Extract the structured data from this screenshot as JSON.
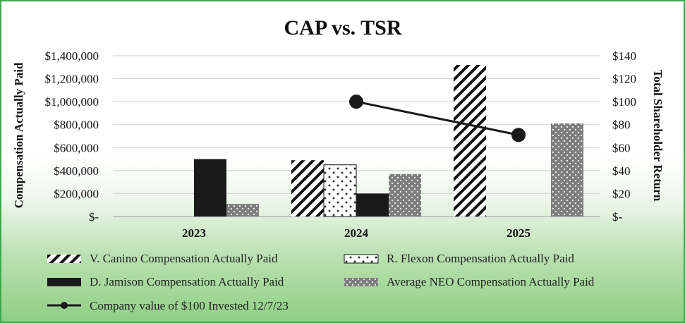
{
  "chart_data": {
    "type": "bar",
    "title": "CAP vs. TSR",
    "categories": [
      "2023",
      "2024",
      "2025"
    ],
    "ylabel": "Compensation Actually Paid",
    "y2label": "Total Shareholder Return",
    "ylim": [
      0,
      1400000
    ],
    "y2lim": [
      0,
      140
    ],
    "yticks": [
      "$-",
      "$200,000",
      "$400,000",
      "$600,000",
      "$800,000",
      "$1,000,000",
      "$1,200,000",
      "$1,400,000"
    ],
    "y2ticks": [
      "$-",
      "$20",
      "$40",
      "$60",
      "$80",
      "$100",
      "$120",
      "$140"
    ],
    "grid": true,
    "series": [
      {
        "name": "V. Canino Compensation Actually Paid",
        "kind": "bar",
        "pattern": "diagonal",
        "values": [
          null,
          490000,
          1320000
        ]
      },
      {
        "name": "R. Flexon Compensation Actually Paid",
        "kind": "bar",
        "pattern": "dots",
        "values": [
          null,
          450000,
          null
        ]
      },
      {
        "name": "D. Jamison Compensation Actually Paid",
        "kind": "bar",
        "pattern": "solid",
        "values": [
          500000,
          200000,
          null
        ]
      },
      {
        "name": "Average NEO Compensation Actually Paid",
        "kind": "bar",
        "pattern": "gray-dots",
        "values": [
          110000,
          370000,
          810000
        ]
      },
      {
        "name": "Company value of $100 Invested 12/7/23",
        "kind": "line",
        "axis": "right",
        "values": [
          null,
          100,
          71
        ]
      }
    ]
  }
}
